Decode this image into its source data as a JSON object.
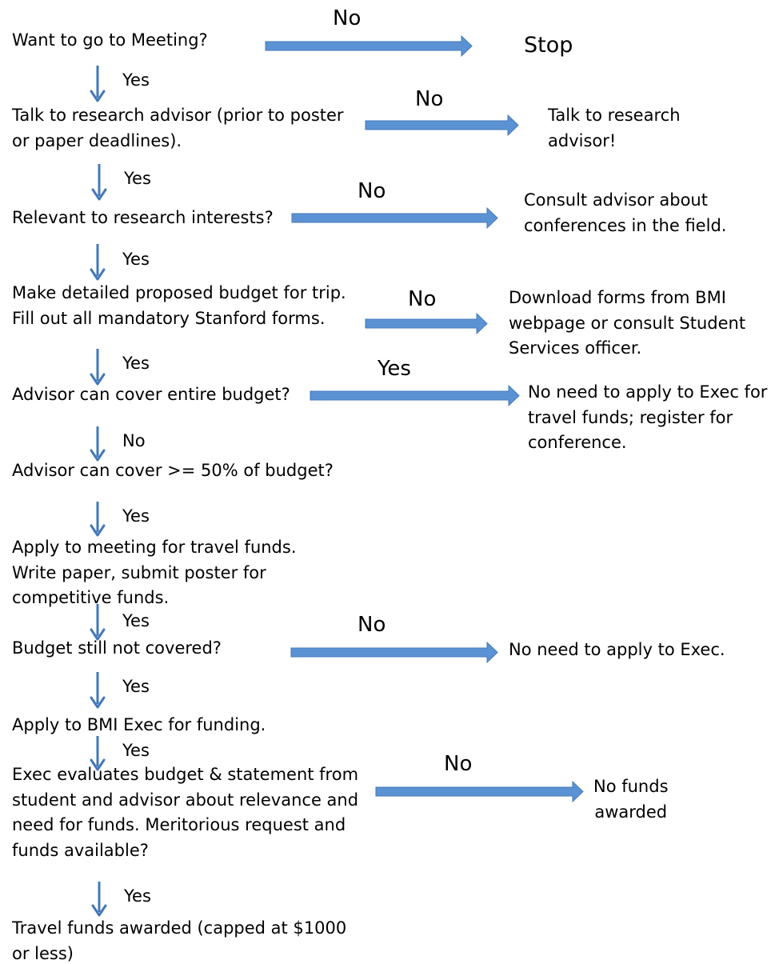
{
  "colors": {
    "arrow_fill": "#5b92d3",
    "arrow_stroke": "#4478b8",
    "text": "#000000"
  },
  "steps": {
    "s1": "Want to go to Meeting?",
    "s2": "Talk to research advisor (prior to poster\nor paper deadlines).",
    "s3": "Relevant to research interests?",
    "s4": "Make detailed proposed budget for trip.\nFill out all mandatory Stanford forms.",
    "s5": "Advisor can cover entire budget?",
    "s6": "Advisor can cover >= 50% of budget?",
    "s7": "Apply to meeting for travel funds.\nWrite paper, submit poster for\ncompetitive funds.",
    "s8": "Budget still not covered?",
    "s9": "Apply to BMI Exec for funding.",
    "s10": "Exec evaluates budget & statement from\nstudent and advisor about relevance and\nneed for funds. Meritorious request and\nfunds available?",
    "s11": "Travel funds awarded (capped at $1000\nor less)"
  },
  "outcomes": {
    "o1": "Stop",
    "o2": "Talk to research\nadvisor!",
    "o3": "Consult advisor about\nconferences in the field.",
    "o4": "Download forms from BMI\nwebpage or consult Student\nServices officer.",
    "o5": "No need to apply to Exec for\ntravel funds; register for\nconference.",
    "o8": "No need to apply to Exec.",
    "o10": "No funds\nawarded"
  },
  "side_labels": {
    "a1": "No",
    "a2": "No",
    "a3": "No",
    "a4": "No",
    "a5": "Yes",
    "a8": "No",
    "a10": "No"
  },
  "down_labels": {
    "d1": "Yes",
    "d2": "Yes",
    "d3": "Yes",
    "d4": "Yes",
    "d5": "No",
    "d6": "Yes",
    "d7": "Yes",
    "d8": "Yes",
    "d9": "Yes",
    "d10": "Yes"
  }
}
